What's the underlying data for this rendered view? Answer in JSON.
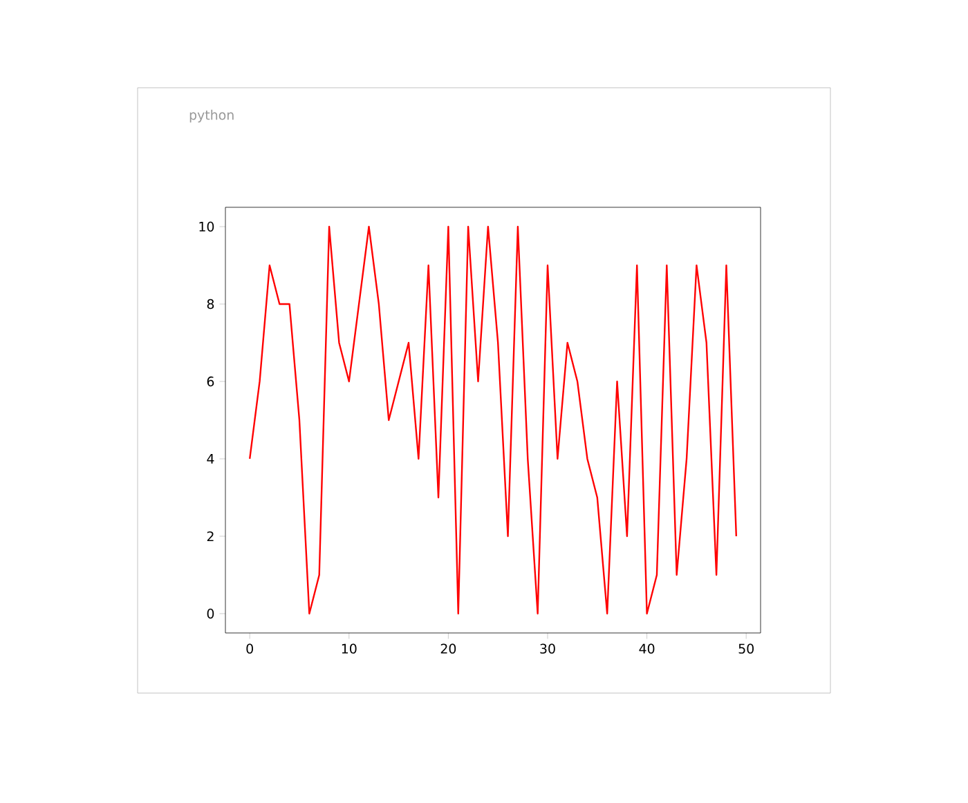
{
  "chart_data": {
    "type": "line",
    "title": "python",
    "x": [
      0,
      1,
      2,
      3,
      4,
      5,
      6,
      7,
      8,
      9,
      10,
      11,
      12,
      13,
      14,
      15,
      16,
      17,
      18,
      19,
      20,
      21,
      22,
      23,
      24,
      25,
      26,
      27,
      28,
      29,
      30,
      31,
      32,
      33,
      34,
      35,
      36,
      37,
      38,
      39,
      40,
      41,
      42,
      43,
      44,
      45,
      46,
      47,
      48,
      49
    ],
    "values": [
      4,
      6,
      9,
      8,
      8,
      5,
      0,
      1,
      10,
      7,
      6,
      8,
      10,
      8,
      5,
      6,
      7,
      4,
      9,
      3,
      10,
      0,
      10,
      6,
      10,
      7,
      2,
      10,
      4,
      0,
      9,
      4,
      7,
      6,
      4,
      3,
      0,
      6,
      2,
      9,
      0,
      1,
      9,
      1,
      4,
      9,
      7,
      1,
      9,
      2
    ],
    "color": "#ff0000",
    "line_style": "solid",
    "marker": "none",
    "xlim": [
      -2.45,
      51.45
    ],
    "ylim": [
      -0.5,
      10.5
    ],
    "xticks": [
      0,
      10,
      20,
      30,
      40,
      50
    ],
    "yticks": [
      0,
      2,
      4,
      6,
      8,
      10
    ]
  }
}
